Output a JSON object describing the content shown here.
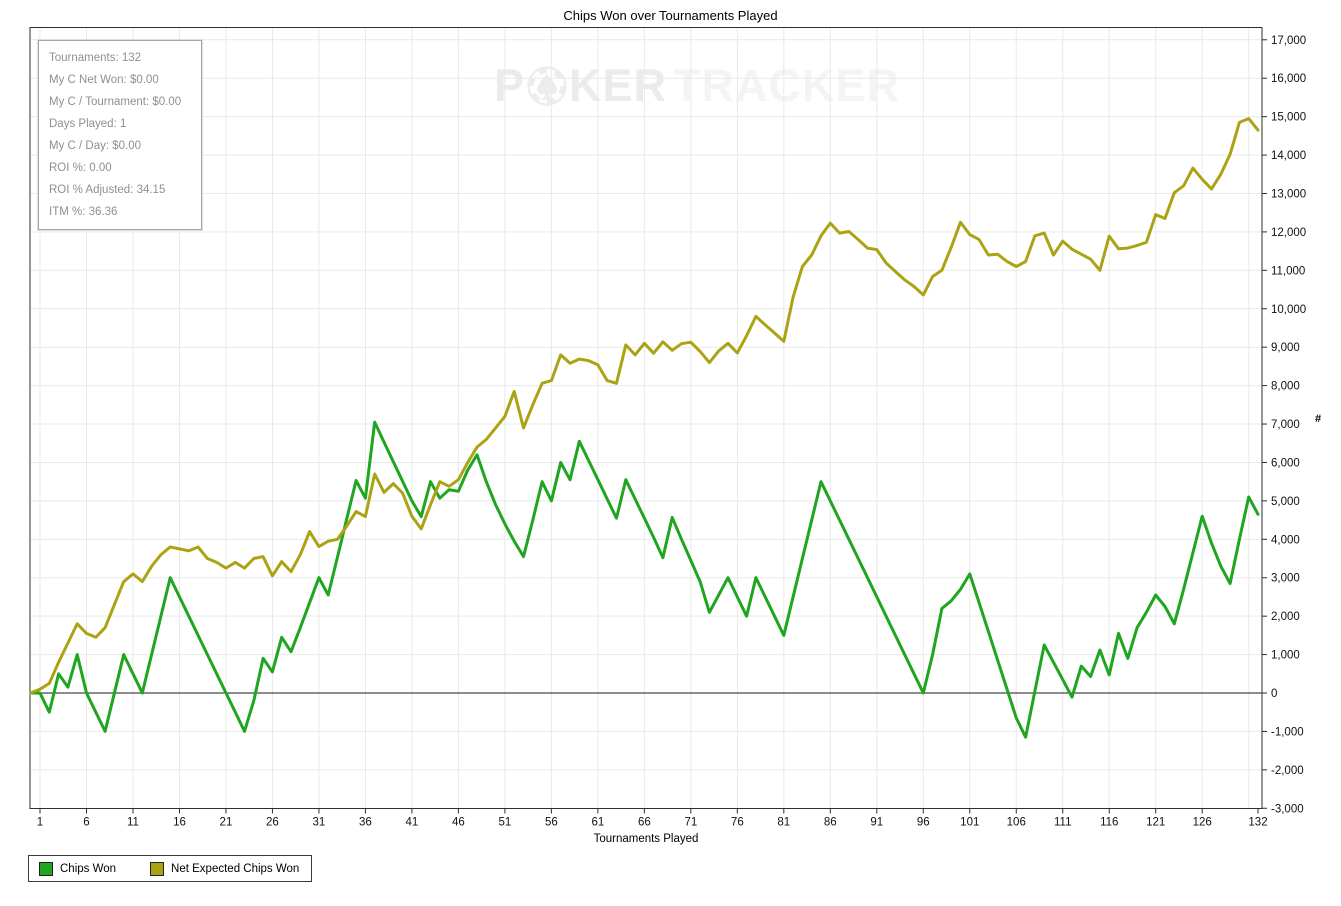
{
  "title": "Chips Won over Tournaments Played",
  "watermark": {
    "part1": "P",
    "part2": "KER",
    "part3": "TRACKER",
    "chip_icon": "poker-chip-spade-icon"
  },
  "stats_box": {
    "lines": [
      "Tournaments: 132",
      "My C Net Won: $0.00",
      "My C / Tournament: $0.00",
      "Days Played: 1",
      "My C / Day: $0.00",
      "ROI %: 0.00",
      "ROI % Adjusted: 34.15",
      "ITM %: 36.36"
    ]
  },
  "axes": {
    "x_title": "Tournaments Played",
    "y_title": "#"
  },
  "legend": [
    {
      "label": "Chips Won",
      "color": "#1fa51f"
    },
    {
      "label": "Net Expected Chips Won",
      "color": "#aca314"
    }
  ],
  "chart_data": {
    "type": "line",
    "title": "Chips Won over Tournaments Played",
    "xlabel": "Tournaments Played",
    "ylabel": "#",
    "x_range": [
      1,
      132
    ],
    "ylim": [
      -3000,
      17000
    ],
    "y_tick_step": 1000,
    "x_ticks": [
      1,
      6,
      11,
      16,
      21,
      26,
      31,
      36,
      41,
      46,
      51,
      56,
      61,
      66,
      71,
      76,
      81,
      86,
      91,
      96,
      101,
      106,
      111,
      116,
      121,
      126,
      132
    ],
    "grid": true,
    "starts_at_zero": true,
    "zero_line": true,
    "series": [
      {
        "name": "Chips Won",
        "color": "#1fa51f",
        "values": [
          0,
          -500,
          500,
          150,
          1000,
          0,
          -500,
          -1000,
          0,
          1000,
          500,
          0,
          1000,
          2000,
          3000,
          2500,
          2000,
          1500,
          1000,
          500,
          0,
          -500,
          -1000,
          -200,
          900,
          550,
          1450,
          1075,
          1700,
          2350,
          3000,
          2550,
          3540,
          4540,
          5530,
          5070,
          7050,
          6530,
          6020,
          5510,
          5000,
          4590,
          5500,
          5070,
          5290,
          5250,
          5800,
          6200,
          5500,
          4900,
          4400,
          3950,
          3550,
          4500,
          5500,
          5000,
          6000,
          5550,
          6550,
          6050,
          5550,
          5050,
          4550,
          5550,
          5050,
          4550,
          4050,
          3520,
          4570,
          4000,
          3450,
          2900,
          2100,
          2550,
          3000,
          2500,
          2000,
          3000,
          2500,
          2000,
          1500,
          2500,
          3500,
          4500,
          5500,
          5000,
          4500,
          4000,
          3500,
          3000,
          2500,
          2000,
          1500,
          1000,
          500,
          0,
          1000,
          2200,
          2400,
          2700,
          3100,
          2350,
          1600,
          850,
          100,
          -650,
          -1150,
          50,
          1250,
          800,
          350,
          -110,
          700,
          430,
          1120,
          470,
          1550,
          900,
          1700,
          2100,
          2550,
          2250,
          1800,
          2700,
          3650,
          4600,
          3900,
          3300,
          2850,
          4000,
          5100,
          4650
        ]
      },
      {
        "name": "Net Expected Chips Won",
        "color": "#aca314",
        "values": [
          100,
          250,
          800,
          1300,
          1800,
          1550,
          1450,
          1700,
          2300,
          2900,
          3100,
          2900,
          3300,
          3600,
          3800,
          3750,
          3700,
          3800,
          3500,
          3400,
          3250,
          3400,
          3250,
          3500,
          3550,
          3050,
          3420,
          3160,
          3600,
          4200,
          3810,
          3950,
          4000,
          4350,
          4720,
          4590,
          5700,
          5220,
          5450,
          5200,
          4600,
          4270,
          4900,
          5500,
          5380,
          5550,
          6000,
          6400,
          6600,
          6900,
          7200,
          7850,
          6900,
          7500,
          8060,
          8130,
          8800,
          8580,
          8690,
          8650,
          8540,
          8130,
          8060,
          9060,
          8800,
          9100,
          8840,
          9140,
          8920,
          9090,
          9130,
          8890,
          8600,
          8900,
          9100,
          8850,
          9300,
          9800,
          9580,
          9370,
          9150,
          10300,
          11100,
          11400,
          11900,
          12230,
          11970,
          12010,
          11800,
          11580,
          11540,
          11190,
          10970,
          10750,
          10580,
          10360,
          10840,
          11000,
          11600,
          12250,
          11930,
          11800,
          11400,
          11420,
          11230,
          11100,
          11230,
          11900,
          11970,
          11400,
          11760,
          11550,
          11420,
          11290,
          11000,
          11890,
          11560,
          11580,
          11650,
          11730,
          12450,
          12350,
          13020,
          13200,
          13660,
          13370,
          13120,
          13500,
          14020,
          14850,
          14950,
          14650
        ]
      }
    ]
  }
}
